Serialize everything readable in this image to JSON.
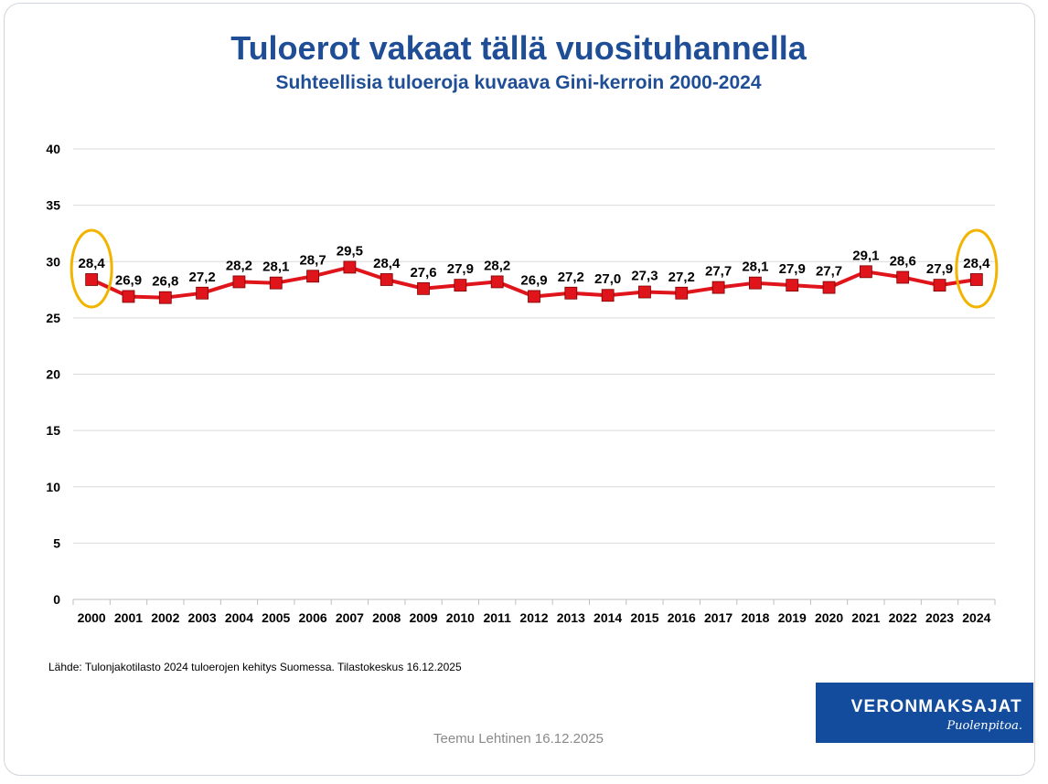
{
  "title": "Tuloerot vakaat tällä vuosituhannella",
  "subtitle": "Suhteellisia tuloeroja kuvaava Gini-kerroin 2000-2024",
  "source": "Lähde: Tulonjakotilasto  2024 tuloerojen  kehitys Suomessa. Tilastokeskus 16.12.2025",
  "footer": "Teemu Lehtinen   16.12.2025",
  "logo": {
    "main": "VERONMAKSAJAT",
    "sub": "Puolenpitoa."
  },
  "colors": {
    "title": "#1f4e96",
    "line": "#e0151c",
    "marker": "#e0151c",
    "highlight": "#f2b400",
    "logo_bg": "#134c9c"
  },
  "chart_data": {
    "type": "line",
    "categories": [
      "2000",
      "2001",
      "2002",
      "2003",
      "2004",
      "2005",
      "2006",
      "2007",
      "2008",
      "2009",
      "2010",
      "2011",
      "2012",
      "2013",
      "2014",
      "2015",
      "2016",
      "2017",
      "2018",
      "2019",
      "2020",
      "2021",
      "2022",
      "2023",
      "2024"
    ],
    "values": [
      28.4,
      26.9,
      26.8,
      27.2,
      28.2,
      28.1,
      28.7,
      29.5,
      28.4,
      27.6,
      27.9,
      28.2,
      26.9,
      27.2,
      27.0,
      27.3,
      27.2,
      27.7,
      28.1,
      27.9,
      27.7,
      29.1,
      28.6,
      27.9,
      28.4
    ],
    "value_labels": [
      "28,4",
      "26,9",
      "26,8",
      "27,2",
      "28,2",
      "28,1",
      "28,7",
      "29,5",
      "28,4",
      "27,6",
      "27,9",
      "28,2",
      "26,9",
      "27,2",
      "27,0",
      "27,3",
      "27,2",
      "27,7",
      "28,1",
      "27,9",
      "27,7",
      "29,1",
      "28,6",
      "27,9",
      "28,4"
    ],
    "ylim": [
      0,
      40
    ],
    "yticks": [
      0,
      5,
      10,
      15,
      20,
      25,
      30,
      35,
      40
    ],
    "grid": true,
    "legend": "none",
    "highlighted": [
      "2000",
      "2024"
    ]
  }
}
